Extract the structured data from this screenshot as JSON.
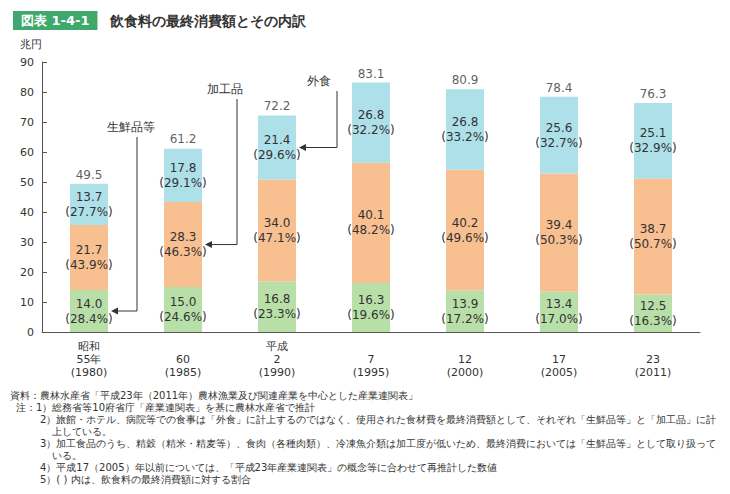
{
  "chart_data": {
    "type": "bar",
    "figure_label": "図表 1-4-1",
    "title": "飲食料の最終消費額とその内訳",
    "y_label": "兆円",
    "categories": [
      "昭和\n55年\n(1980)",
      "60\n(1985)",
      "平成\n2\n(1990)",
      "7\n(1995)",
      "12\n(2000)",
      "17\n(2005)",
      "23\n(2011)"
    ],
    "stacked": true,
    "data_labels": true,
    "grid": false,
    "series": [
      {
        "name": "生鮮品等",
        "color": "#b9dfa8",
        "values": [
          14.0,
          15.0,
          16.8,
          16.3,
          13.9,
          13.4,
          12.5
        ],
        "value_labels": [
          "14.0\n(28.4%)",
          "15.0\n(24.6%)",
          "16.8\n(23.3%)",
          "16.3\n(19.6%)",
          "13.9\n(17.2%)",
          "13.4\n(17.0%)",
          "12.5\n(16.3%)"
        ]
      },
      {
        "name": "加工品",
        "color": "#f8bf90",
        "values": [
          21.7,
          28.3,
          34.0,
          40.1,
          40.2,
          39.4,
          38.7
        ],
        "value_labels": [
          "21.7\n(43.9%)",
          "28.3\n(46.3%)",
          "34.0\n(47.1%)",
          "40.1\n(48.2%)",
          "40.2\n(49.6%)",
          "39.4\n(50.3%)",
          "38.7\n(50.7%)"
        ]
      },
      {
        "name": "外食",
        "color": "#aee0ea",
        "values": [
          13.7,
          17.8,
          21.4,
          26.8,
          26.8,
          25.6,
          25.1
        ],
        "value_labels": [
          "13.7\n(27.7%)",
          "17.8\n(29.1%)",
          "21.4\n(29.6%)",
          "26.8\n(32.2%)",
          "26.8\n(33.2%)",
          "25.6\n(32.7%)",
          "25.1\n(32.9%)"
        ]
      }
    ],
    "totals": [
      49.5,
      61.2,
      72.2,
      83.1,
      80.9,
      78.4,
      76.3
    ],
    "ylim": [
      0,
      90
    ],
    "yticks": [
      0,
      10,
      20,
      30,
      40,
      50,
      60,
      70,
      80,
      90
    ],
    "source": "資料：農林水産省「平成23年（2011年）農林漁業及び関連産業を中心とした産業連関表」",
    "notes": [
      "注：1）総務省等10府省庁「産業連関表」を基に農林水産省で推計",
      "2）旅館・ホテル、病院等での食事は「外食」に計上するのではなく、使用された食材費を最終消費額として、それぞれ「生鮮品等」と「加工品」に計上している。",
      "3）加工食品のうち、精穀（精米・精麦等）、食肉（各種肉類）、冷凍魚介類は加工度が低いため、最終消費においては「生鮮品等」として取り扱っている。",
      "4）平成17（2005）年以前については、「平成23年産業連関表」の概念等に合わせて再推計した数値",
      "5）(  ) 内は、飲食料の最終消費額に対する割合"
    ]
  }
}
